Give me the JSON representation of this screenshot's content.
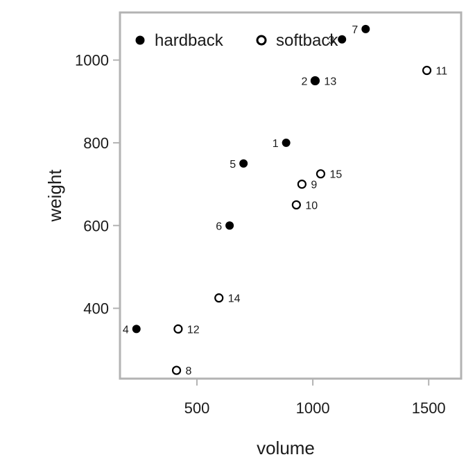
{
  "chart_data": {
    "type": "scatter",
    "xlabel": "volume",
    "ylabel": "weight",
    "xlim": [
      168,
      1640
    ],
    "ylim": [
      230,
      1115
    ],
    "xticks": [
      500,
      1000,
      1500
    ],
    "yticks": [
      400,
      600,
      800,
      1000
    ],
    "legend_position": "top-left",
    "grid": false,
    "colors": {
      "marker": "#000000",
      "frame": "#b3b3b3"
    },
    "series": [
      {
        "name": "hardback",
        "marker": "filled-circle",
        "points": [
          {
            "label": "1",
            "x": 885,
            "y": 800
          },
          {
            "label": "2",
            "x": 1010,
            "y": 950
          },
          {
            "label": "3",
            "x": 1126,
            "y": 1050
          },
          {
            "label": "4",
            "x": 239,
            "y": 350
          },
          {
            "label": "5",
            "x": 701,
            "y": 750
          },
          {
            "label": "6",
            "x": 641,
            "y": 600
          },
          {
            "label": "7",
            "x": 1228,
            "y": 1075
          }
        ]
      },
      {
        "name": "softback",
        "marker": "open-circle",
        "points": [
          {
            "label": "8",
            "x": 412,
            "y": 250
          },
          {
            "label": "9",
            "x": 953,
            "y": 700
          },
          {
            "label": "10",
            "x": 929,
            "y": 650
          },
          {
            "label": "11",
            "x": 1492,
            "y": 975
          },
          {
            "label": "12",
            "x": 419,
            "y": 350
          },
          {
            "label": "13",
            "x": 1010,
            "y": 950
          },
          {
            "label": "14",
            "x": 595,
            "y": 425
          },
          {
            "label": "15",
            "x": 1034,
            "y": 725
          }
        ]
      }
    ]
  }
}
